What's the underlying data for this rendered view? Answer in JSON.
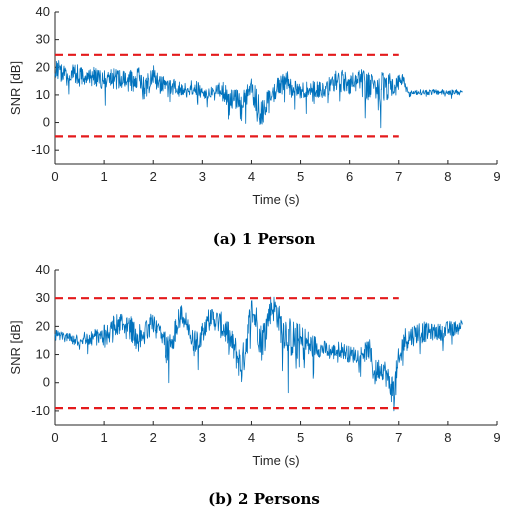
{
  "chart_data": [
    {
      "type": "line",
      "caption": "(a) 1 Person",
      "xlabel": "Time (s)",
      "ylabel": "SNR [dB]",
      "xlim": [
        0,
        9
      ],
      "ylim": [
        -15,
        40
      ],
      "xticks": [
        0,
        1,
        2,
        3,
        4,
        5,
        6,
        7,
        8,
        9
      ],
      "yticks": [
        -10,
        0,
        10,
        20,
        30,
        40
      ],
      "grid": false,
      "legend": "none",
      "series": [
        {
          "color": "#0072BD",
          "style": "noisy-line",
          "x": [
            0.0,
            0.1,
            0.2,
            0.3,
            0.4,
            0.5,
            0.6,
            0.7,
            0.8,
            0.9,
            1.0,
            1.1,
            1.2,
            1.3,
            1.4,
            1.5,
            1.6,
            1.7,
            1.8,
            1.9,
            2.0,
            2.1,
            2.2,
            2.3,
            2.4,
            2.5,
            2.6,
            2.7,
            2.8,
            2.9,
            3.0,
            3.1,
            3.2,
            3.3,
            3.4,
            3.5,
            3.6,
            3.7,
            3.8,
            3.9,
            4.0,
            4.1,
            4.2,
            4.3,
            4.4,
            4.5,
            4.6,
            4.7,
            4.8,
            4.9,
            5.0,
            5.1,
            5.2,
            5.3,
            5.4,
            5.5,
            5.6,
            5.7,
            5.8,
            5.9,
            6.0,
            6.1,
            6.2,
            6.3,
            6.4,
            6.5,
            6.6,
            6.7,
            6.8,
            6.9,
            7.0,
            7.1,
            7.2,
            7.3,
            7.4,
            7.5,
            7.6,
            7.7,
            7.8,
            7.9,
            8.0,
            8.1,
            8.2,
            8.3
          ],
          "y": [
            19,
            19,
            17,
            16,
            18,
            17,
            16,
            16,
            17,
            16,
            15,
            17,
            16,
            15,
            16,
            14,
            16,
            17,
            12,
            15,
            18,
            14,
            14,
            13,
            13,
            12,
            12,
            13,
            13,
            12,
            11,
            10,
            11,
            12,
            12,
            10,
            9,
            8,
            5,
            10,
            12,
            8,
            4,
            6,
            9,
            12,
            14,
            16,
            13,
            12,
            11,
            12,
            13,
            12,
            12,
            11,
            13,
            15,
            16,
            15,
            14,
            15,
            16,
            12,
            14,
            15,
            10,
            13,
            14,
            12,
            15,
            16,
            10,
            11,
            11,
            11,
            11,
            11,
            11,
            11,
            11,
            11,
            11,
            11
          ],
          "noise": [
            3,
            4,
            3,
            3,
            4,
            4,
            3,
            3,
            4,
            3,
            4,
            3,
            4,
            4,
            3,
            4,
            5,
            6,
            5,
            5,
            4,
            4,
            3,
            3,
            3,
            3,
            2,
            3,
            3,
            3,
            2,
            2,
            2,
            2,
            3,
            4,
            4,
            4,
            5,
            4,
            4,
            5,
            6,
            5,
            4,
            4,
            3,
            4,
            4,
            3,
            3,
            3,
            3,
            3,
            3,
            3,
            4,
            4,
            4,
            4,
            4,
            4,
            5,
            7,
            5,
            5,
            7,
            6,
            5,
            4,
            3,
            2,
            1,
            1,
            1,
            1,
            1,
            1,
            1,
            1,
            1,
            1,
            1,
            1
          ]
        }
      ],
      "hlines": [
        {
          "y": 24.5,
          "x": [
            0,
            7
          ],
          "color": "#E41A1C",
          "style": "dashed"
        },
        {
          "y": -5,
          "x": [
            0,
            7
          ],
          "color": "#E41A1C",
          "style": "dashed"
        }
      ]
    },
    {
      "type": "line",
      "caption": "(b) 2 Persons",
      "xlabel": "Time (s)",
      "ylabel": "SNR [dB]",
      "xlim": [
        0,
        9
      ],
      "ylim": [
        -15,
        40
      ],
      "xticks": [
        0,
        1,
        2,
        3,
        4,
        5,
        6,
        7,
        8,
        9
      ],
      "yticks": [
        -10,
        0,
        10,
        20,
        30,
        40
      ],
      "grid": false,
      "legend": "none",
      "series": [
        {
          "color": "#0072BD",
          "style": "noisy-line",
          "x": [
            0.0,
            0.1,
            0.2,
            0.3,
            0.4,
            0.5,
            0.6,
            0.7,
            0.8,
            0.9,
            1.0,
            1.1,
            1.2,
            1.3,
            1.4,
            1.5,
            1.6,
            1.7,
            1.8,
            1.9,
            2.0,
            2.1,
            2.2,
            2.3,
            2.4,
            2.5,
            2.6,
            2.7,
            2.8,
            2.9,
            3.0,
            3.1,
            3.2,
            3.3,
            3.4,
            3.5,
            3.6,
            3.7,
            3.8,
            3.9,
            4.0,
            4.1,
            4.2,
            4.3,
            4.4,
            4.5,
            4.6,
            4.7,
            4.8,
            4.9,
            5.0,
            5.1,
            5.2,
            5.3,
            5.4,
            5.5,
            5.6,
            5.7,
            5.8,
            5.9,
            6.0,
            6.1,
            6.2,
            6.3,
            6.4,
            6.5,
            6.6,
            6.7,
            6.8,
            6.9,
            7.0,
            7.1,
            7.2,
            7.3,
            7.4,
            7.5,
            7.6,
            7.7,
            7.8,
            7.9,
            8.0,
            8.1,
            8.2,
            8.3
          ],
          "y": [
            17,
            17,
            16,
            16,
            15,
            15,
            16,
            15,
            16,
            16,
            17,
            18,
            19,
            20,
            21,
            20,
            18,
            16,
            17,
            20,
            22,
            20,
            15,
            12,
            16,
            22,
            24,
            20,
            14,
            14,
            18,
            22,
            23,
            22,
            20,
            18,
            14,
            10,
            5,
            15,
            26,
            22,
            14,
            20,
            27,
            26,
            20,
            18,
            16,
            15,
            14,
            14,
            13,
            13,
            12,
            12,
            11,
            11,
            12,
            11,
            10,
            10,
            10,
            11,
            12,
            3,
            5,
            5,
            0,
            -3,
            6,
            15,
            16,
            17,
            18,
            18,
            18,
            18,
            18,
            18,
            19,
            19,
            20,
            21
          ],
          "noise": [
            2,
            2,
            2,
            2,
            2,
            2,
            2,
            3,
            3,
            3,
            4,
            4,
            5,
            5,
            4,
            4,
            5,
            5,
            4,
            4,
            4,
            5,
            6,
            5,
            5,
            4,
            4,
            5,
            5,
            4,
            4,
            4,
            4,
            4,
            5,
            5,
            5,
            6,
            6,
            7,
            5,
            6,
            7,
            6,
            5,
            5,
            6,
            7,
            7,
            7,
            7,
            6,
            5,
            4,
            3,
            3,
            3,
            3,
            3,
            3,
            3,
            3,
            3,
            3,
            4,
            5,
            4,
            4,
            5,
            6,
            7,
            5,
            4,
            4,
            4,
            4,
            3,
            3,
            3,
            3,
            3,
            3,
            2,
            2
          ]
        }
      ],
      "hlines": [
        {
          "y": 30,
          "x": [
            0,
            7
          ],
          "color": "#E41A1C",
          "style": "dashed"
        },
        {
          "y": -9,
          "x": [
            0,
            7
          ],
          "color": "#E41A1C",
          "style": "dashed"
        }
      ]
    }
  ]
}
